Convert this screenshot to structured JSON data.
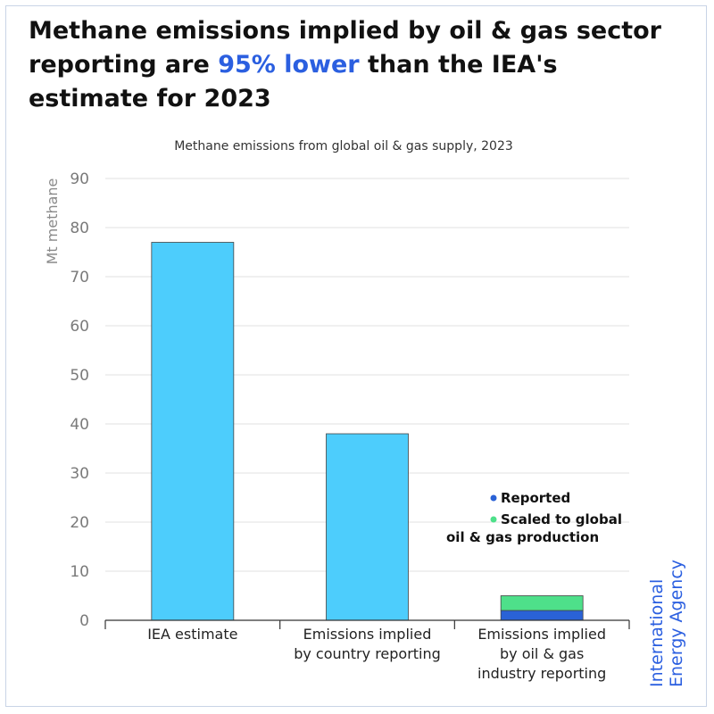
{
  "headline": {
    "part1": "Methane emissions implied by oil & gas sector reporting are ",
    "highlight": "95% lower",
    "part2": " than the IEA's estimate for 2023"
  },
  "chart_data": {
    "type": "bar",
    "title": "Methane emissions from global oil & gas supply, 2023",
    "ylabel": "Mt methane",
    "xlabel": "",
    "ylim": [
      0,
      90
    ],
    "yticks": [
      0,
      10,
      20,
      30,
      40,
      50,
      60,
      70,
      80,
      90
    ],
    "grid": true,
    "categories": [
      [
        "IEA estimate"
      ],
      [
        "Emissions implied",
        "by country reporting"
      ],
      [
        "Emissions implied",
        "by oil & gas",
        "industry reporting"
      ]
    ],
    "bars": [
      {
        "value": 77,
        "color": "#4dcdfc"
      },
      {
        "value": 38,
        "color": "#4dcdfc"
      },
      {
        "stacked": [
          {
            "series": "Reported",
            "value": 2,
            "color": "#2a62d6"
          },
          {
            "series": "Scaled to global oil & gas production",
            "value": 3,
            "color": "#4ee08a"
          }
        ]
      }
    ],
    "legend": {
      "placement": "right",
      "items": [
        {
          "label": [
            "Reported"
          ],
          "color": "#2a62d6"
        },
        {
          "label": [
            "Scaled to global",
            "oil & gas production"
          ],
          "color": "#4ee08a"
        }
      ]
    }
  },
  "source": {
    "line1": "International",
    "line2": "Energy Agency"
  }
}
